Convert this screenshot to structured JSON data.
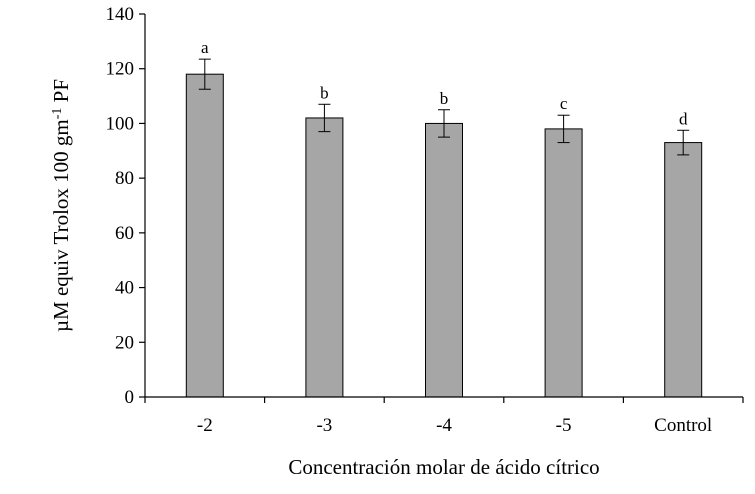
{
  "chart_data": {
    "type": "bar",
    "categories": [
      "-2",
      "-3",
      "-4",
      "-5",
      "Control"
    ],
    "values": [
      118,
      102,
      100,
      98,
      93
    ],
    "errors": [
      5.5,
      5,
      5,
      5,
      4.5
    ],
    "significance_letters": [
      "a",
      "b",
      "b",
      "c",
      "d"
    ],
    "xlabel": "Concentración molar de ácido cítrico",
    "ylabel": {
      "main": "µM equiv Trolox 100 gm",
      "superscript": "-1",
      "suffix": " PF"
    },
    "ylim": [
      0,
      140
    ],
    "yticks": [
      0,
      20,
      40,
      60,
      80,
      100,
      120,
      140
    ],
    "grid": false,
    "legend": "none",
    "colors": {
      "bar_fill": "#a6a6a6",
      "bar_stroke": "#000000",
      "axis": "#000000"
    }
  }
}
